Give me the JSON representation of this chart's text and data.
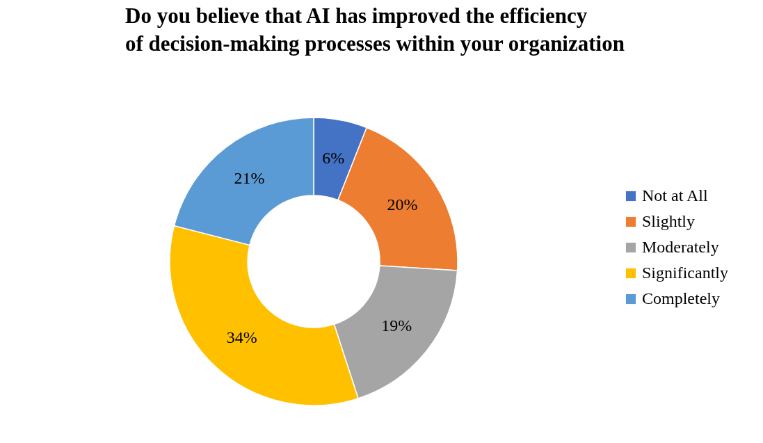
{
  "chart_data": {
    "type": "donut",
    "title": "Do you believe that AI has improved the efficiency of decision-making processes within your organization",
    "categories": [
      "Not at All",
      "Slightly",
      "Moderately",
      "Significantly",
      "Completely"
    ],
    "values": [
      6,
      20,
      19,
      34,
      21
    ],
    "colors": [
      "#4472c4",
      "#ed7d31",
      "#a5a5a5",
      "#ffc000",
      "#5b9bd5"
    ],
    "value_labels": [
      "6%",
      "20%",
      "19%",
      "34%",
      "21%"
    ],
    "legend": "right"
  }
}
